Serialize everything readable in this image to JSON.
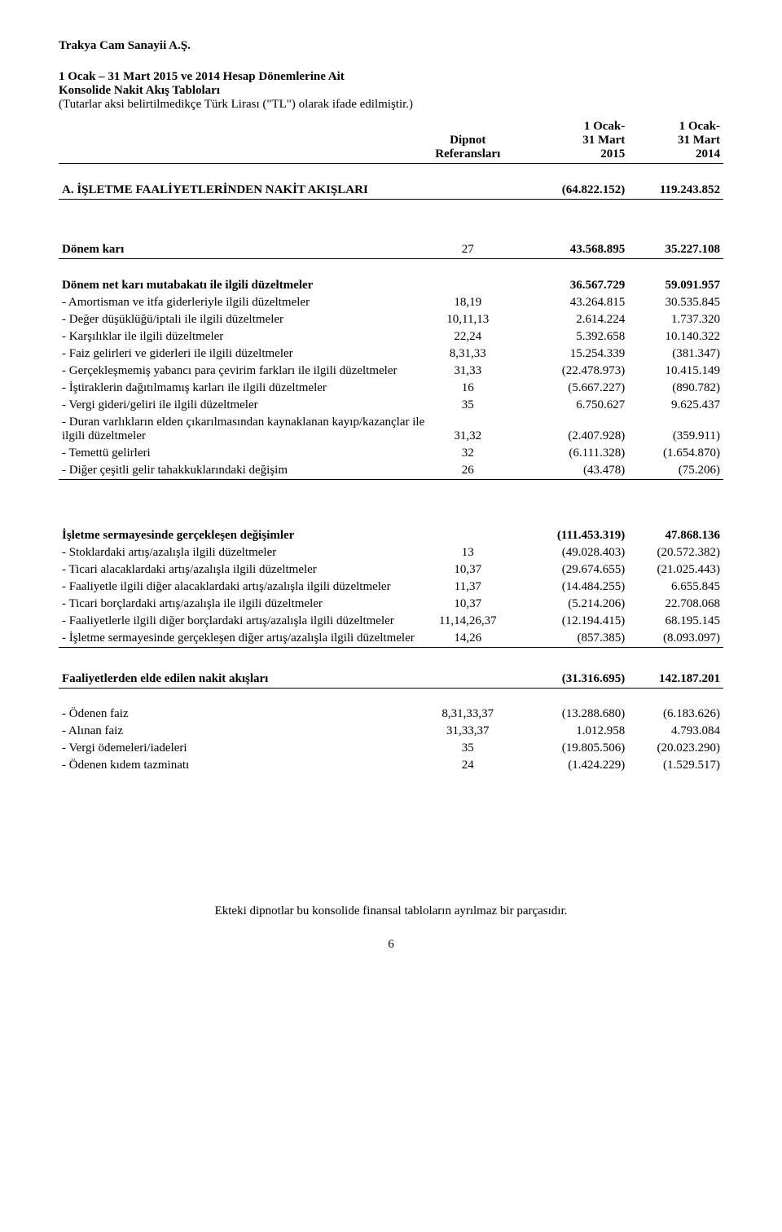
{
  "company": "Trakya Cam Sanayii A.Ş.",
  "title1": "1 Ocak – 31 Mart 2015 ve 2014 Hesap Dönemlerine Ait",
  "title2": "Konsolide Nakit Akış Tabloları",
  "subtitle": "(Tutarlar aksi belirtilmedikçe Türk Lirası (\"TL\") olarak ifade edilmiştir.)",
  "headers": {
    "ref1": "Dipnot",
    "ref2": "Referansları",
    "c1a": "1 Ocak-",
    "c1b": "31 Mart",
    "c1c": "2015",
    "c2a": "1 Ocak-",
    "c2b": "31 Mart",
    "c2c": "2014"
  },
  "sectionA": {
    "label": "A. İŞLETME FAALİYETLERİNDEN NAKİT AKIŞLARI",
    "c1": "(64.822.152)",
    "c2": "119.243.852"
  },
  "donemKari": {
    "label": "Dönem karı",
    "ref": "27",
    "c1": "43.568.895",
    "c2": "35.227.108"
  },
  "mutabakat": {
    "label": "Dönem net karı mutabakatı ile ilgili düzeltmeler",
    "c1": "36.567.729",
    "c2": "59.091.957"
  },
  "rows1": [
    {
      "label": "- Amortisman ve itfa giderleriyle ilgili düzeltmeler",
      "ref": "18,19",
      "c1": "43.264.815",
      "c2": "30.535.845"
    },
    {
      "label": "- Değer düşüklüğü/iptali ile ilgili düzeltmeler",
      "ref": "10,11,13",
      "c1": "2.614.224",
      "c2": "1.737.320"
    },
    {
      "label": "- Karşılıklar ile ilgili düzeltmeler",
      "ref": "22,24",
      "c1": "5.392.658",
      "c2": "10.140.322"
    },
    {
      "label": "- Faiz gelirleri ve giderleri ile ilgili düzeltmeler",
      "ref": "8,31,33",
      "c1": "15.254.339",
      "c2": "(381.347)"
    },
    {
      "label": "- Gerçekleşmemiş yabancı para çevirim farkları ile ilgili düzeltmeler",
      "ref": "31,33",
      "c1": "(22.478.973)",
      "c2": "10.415.149"
    },
    {
      "label": "- İştiraklerin dağıtılmamış karları ile ilgili düzeltmeler",
      "ref": "16",
      "c1": "(5.667.227)",
      "c2": "(890.782)"
    },
    {
      "label": "- Vergi gideri/geliri ile ilgili düzeltmeler",
      "ref": "35",
      "c1": "6.750.627",
      "c2": "9.625.437"
    },
    {
      "label": "- Duran varlıkların elden çıkarılmasından kaynaklanan kayıp/kazançlar ile ilgili düzeltmeler",
      "ref": "31,32",
      "c1": "(2.407.928)",
      "c2": "(359.911)"
    },
    {
      "label": "- Temettü gelirleri",
      "ref": "32",
      "c1": "(6.111.328)",
      "c2": "(1.654.870)"
    },
    {
      "label": "- Diğer çeşitli gelir tahakkuklarındaki değişim",
      "ref": "26",
      "c1": "(43.478)",
      "c2": "(75.206)"
    }
  ],
  "isletmeSermaye": {
    "label": "İşletme sermayesinde gerçekleşen değişimler",
    "c1": "(111.453.319)",
    "c2": "47.868.136"
  },
  "rows2": [
    {
      "label": "- Stoklardaki artış/azalışla ilgili düzeltmeler",
      "ref": "13",
      "c1": "(49.028.403)",
      "c2": "(20.572.382)"
    },
    {
      "label": "- Ticari alacaklardaki artış/azalışla ilgili düzeltmeler",
      "ref": "10,37",
      "c1": "(29.674.655)",
      "c2": "(21.025.443)"
    },
    {
      "label": "- Faaliyetle ilgili diğer alacaklardaki artış/azalışla ilgili düzeltmeler",
      "ref": "11,37",
      "c1": "(14.484.255)",
      "c2": "6.655.845"
    },
    {
      "label": "- Ticari borçlardaki artış/azalışla ile ilgili düzeltmeler",
      "ref": "10,37",
      "c1": "(5.214.206)",
      "c2": "22.708.068"
    },
    {
      "label": "- Faaliyetlerle ilgili diğer borçlardaki artış/azalışla ilgili düzeltmeler",
      "ref": "11,14,26,37",
      "c1": "(12.194.415)",
      "c2": "68.195.145"
    },
    {
      "label": "- İşletme sermayesinde gerçekleşen diğer artış/azalışla ilgili düzeltmeler",
      "ref": "14,26",
      "c1": "(857.385)",
      "c2": "(8.093.097)"
    }
  ],
  "faaliyetNakit": {
    "label": "Faaliyetlerden elde edilen nakit akışları",
    "c1": "(31.316.695)",
    "c2": "142.187.201"
  },
  "rows3": [
    {
      "label": "- Ödenen faiz",
      "ref": "8,31,33,37",
      "c1": "(13.288.680)",
      "c2": "(6.183.626)"
    },
    {
      "label": "- Alınan faiz",
      "ref": "31,33,37",
      "c1": "1.012.958",
      "c2": "4.793.084"
    },
    {
      "label": "- Vergi ödemeleri/iadeleri",
      "ref": "35",
      "c1": "(19.805.506)",
      "c2": "(20.023.290)"
    },
    {
      "label": "- Ödenen kıdem tazminatı",
      "ref": "24",
      "c1": "(1.424.229)",
      "c2": "(1.529.517)"
    }
  ],
  "footer": "Ekteki dipnotlar bu konsolide finansal tabloların ayrılmaz bir parçasıdır.",
  "pageNum": "6"
}
